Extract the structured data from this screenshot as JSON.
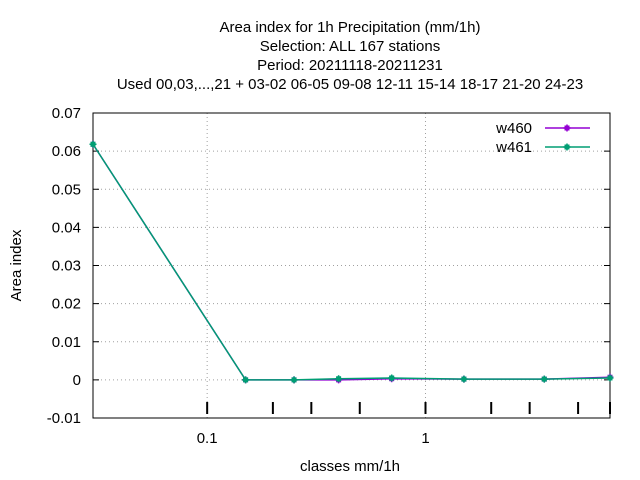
{
  "chart_data": {
    "type": "line",
    "title_lines": [
      "Area index  for 1h Precipitation (mm/1h)",
      "Selection: ALL     167 stations",
      "Period: 20211118-20211231",
      "Used  00,03,...,21  + 03-02  06-05  09-08  12-11  15-14  18-17  21-20  24-23"
    ],
    "xlabel": "classes mm/1h",
    "ylabel": "Area index",
    "x_scale": "log",
    "xlim": [
      0.03,
      7.0
    ],
    "ylim": [
      -0.01,
      0.07
    ],
    "x_ticks": [
      {
        "value": 0.1,
        "label": "0.1"
      },
      {
        "value": 1,
        "label": "1"
      }
    ],
    "y_ticks": [
      {
        "value": 0.07,
        "label": "0.07"
      },
      {
        "value": 0.06,
        "label": "0.06"
      },
      {
        "value": 0.05,
        "label": "0.05"
      },
      {
        "value": 0.04,
        "label": "0.04"
      },
      {
        "value": 0.03,
        "label": "0.03"
      },
      {
        "value": 0.02,
        "label": "0.02"
      },
      {
        "value": 0.01,
        "label": "0.01"
      },
      {
        "value": 0,
        "label": "0"
      },
      {
        "value": -0.01,
        "label": "-0.01"
      }
    ],
    "x_minor_marks": [
      0.1,
      0.2,
      0.3,
      0.5,
      1,
      2,
      3,
      5,
      7
    ],
    "grid": true,
    "legend_position": "top-right",
    "series": [
      {
        "name": "w460",
        "color": "#9400d3",
        "x": [
          0.03,
          0.15,
          0.25,
          0.4,
          0.7,
          1.5,
          3.5,
          7.0
        ],
        "y": [
          0.0618,
          0.0,
          0.0,
          0.0,
          0.0003,
          0.0002,
          0.0002,
          0.0007
        ]
      },
      {
        "name": "w461",
        "color": "#009e73",
        "x": [
          0.03,
          0.15,
          0.25,
          0.4,
          0.7,
          1.5,
          3.5,
          7.0
        ],
        "y": [
          0.0618,
          0.0,
          0.0,
          0.0003,
          0.0005,
          0.0002,
          0.0002,
          0.0005
        ]
      }
    ]
  }
}
